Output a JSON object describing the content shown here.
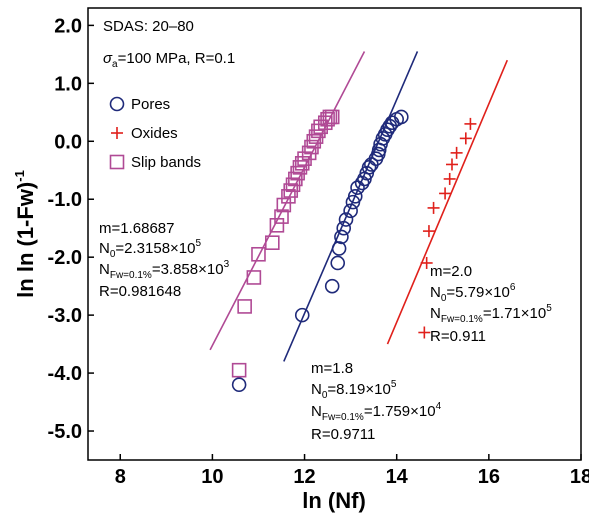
{
  "chart_data": {
    "type": "scatter",
    "xlabel": "ln (Nf)",
    "ylabel_main": "ln  ln (1-Fw)",
    "ylabel_sup": "-1",
    "xlim": [
      7.3,
      18
    ],
    "ylim": [
      -5.5,
      2.3
    ],
    "xticks": [
      "8",
      "10",
      "12",
      "14",
      "16",
      "18"
    ],
    "yticks": [
      "2.0",
      "1.0",
      "0.0",
      "-1.0",
      "-2.0",
      "-3.0",
      "-4.0",
      "-5.0"
    ],
    "xtick_values": [
      8,
      10,
      12,
      14,
      16,
      18
    ],
    "ytick_values": [
      2,
      1,
      0,
      -1,
      -2,
      -3,
      -4,
      -5
    ],
    "header": {
      "line1": "SDAS: 20–80",
      "line2_sigma": "σ",
      "line2_sub": "a",
      "line2_rest": "=100 MPa, R=0.1"
    },
    "legend_position": "upper-left",
    "series": [
      {
        "name": "Pores",
        "marker": "circle",
        "color": "#1f2a7a",
        "x": [
          10.58,
          11.95,
          12.6,
          12.72,
          12.75,
          12.8,
          12.85,
          12.9,
          13.0,
          13.05,
          13.1,
          13.15,
          13.25,
          13.3,
          13.35,
          13.4,
          13.45,
          13.55,
          13.6,
          13.62,
          13.65,
          13.7,
          13.75,
          13.8,
          13.85,
          13.9,
          14.0,
          14.1
        ],
        "y": [
          -4.2,
          -3.0,
          -2.5,
          -2.1,
          -1.85,
          -1.65,
          -1.5,
          -1.35,
          -1.2,
          -1.05,
          -0.95,
          -0.8,
          -0.72,
          -0.65,
          -0.55,
          -0.45,
          -0.4,
          -0.3,
          -0.22,
          -0.15,
          -0.05,
          0.05,
          0.12,
          0.2,
          0.26,
          0.32,
          0.38,
          0.42
        ],
        "fit": {
          "x": [
            11.55,
            14.45
          ],
          "y": [
            -3.8,
            1.55
          ]
        },
        "params": {
          "m": "m=1.8",
          "n0_main": "N",
          "n0_sub": "0",
          "n0_mid": "=8.19×10",
          "n0_sup": "5",
          "nfw_main": "N",
          "nfw_sub": "Fw=0.1%",
          "nfw_mid": "=1.759×10",
          "nfw_sup": "4",
          "r": "R=0.9711"
        }
      },
      {
        "name": "Oxides",
        "marker": "plus",
        "color": "#e0201b",
        "x": [
          14.6,
          14.65,
          14.7,
          14.8,
          15.05,
          15.15,
          15.2,
          15.3,
          15.5,
          15.6
        ],
        "y": [
          -3.3,
          -2.1,
          -1.55,
          -1.15,
          -0.9,
          -0.65,
          -0.4,
          -0.2,
          0.05,
          0.3
        ],
        "fit": {
          "x": [
            13.8,
            16.4
          ],
          "y": [
            -3.5,
            1.4
          ]
        },
        "params": {
          "m": "m=2.0",
          "n0_main": "N",
          "n0_sub": "0",
          "n0_mid": "=5.79×10",
          "n0_sup": "6",
          "nfw_main": "N",
          "nfw_sub": "Fw=0.1%",
          "nfw_mid": "=1.71×10",
          "nfw_sup": "5",
          "r": "R=0.911"
        }
      },
      {
        "name": "Slip bands",
        "marker": "square",
        "color": "#b04a95",
        "x": [
          10.58,
          10.7,
          10.9,
          11.0,
          11.3,
          11.4,
          11.5,
          11.55,
          11.65,
          11.7,
          11.75,
          11.8,
          11.85,
          11.9,
          11.95,
          12.0,
          12.1,
          12.15,
          12.2,
          12.25,
          12.3,
          12.35,
          12.45,
          12.5,
          12.55,
          12.6
        ],
        "y": [
          -3.95,
          -2.85,
          -2.35,
          -1.95,
          -1.75,
          -1.45,
          -1.3,
          -1.1,
          -0.95,
          -0.85,
          -0.75,
          -0.65,
          -0.55,
          -0.45,
          -0.38,
          -0.3,
          -0.2,
          -0.1,
          0.0,
          0.08,
          0.18,
          0.25,
          0.32,
          0.38,
          0.42,
          0.42
        ],
        "fit": {
          "x": [
            9.95,
            13.3
          ],
          "y": [
            -3.6,
            1.55
          ]
        },
        "params": {
          "m": "m=1.68687",
          "n0_main": "N",
          "n0_sub": "0",
          "n0_mid": "=2.3158×10",
          "n0_sup": "5",
          "nfw_main": "N",
          "nfw_sub": "Fw=0.1%",
          "nfw_mid": "=3.858×10",
          "nfw_sup": "3",
          "r": "R=0.981648"
        }
      }
    ]
  }
}
